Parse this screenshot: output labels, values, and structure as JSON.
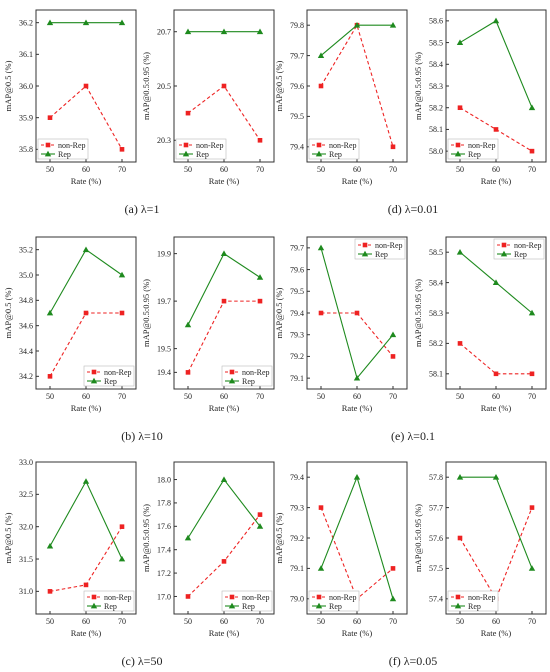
{
  "series_colors": {
    "non-Rep": "#ee2222",
    "Rep": "#1e8a1e"
  },
  "captions": [
    "(a) λ=1",
    "(b) λ=10",
    "(c) λ=50",
    "(d) λ=0.01",
    "(e) λ=0.1",
    "(f) λ=0.05"
  ],
  "chart_data": [
    {
      "id": "a-left",
      "type": "line",
      "x": [
        50,
        60,
        70
      ],
      "xlabel": "Rate (%)",
      "ylabel": "mAP@0.5 (%)",
      "yticks": [
        "35.8",
        "35.9",
        "36.0",
        "36.1",
        "36.2"
      ],
      "ylim": [
        35.76,
        36.24
      ],
      "legend": "bottom-left",
      "series": [
        {
          "name": "non-Rep",
          "values": [
            35.9,
            36.0,
            35.8
          ]
        },
        {
          "name": "Rep",
          "values": [
            36.2,
            36.2,
            36.2
          ]
        }
      ]
    },
    {
      "id": "a-right",
      "type": "line",
      "x": [
        50,
        60,
        70
      ],
      "xlabel": "Rate (%)",
      "ylabel": "mAP@0.5:0.95 (%)",
      "yticks": [
        "20.3",
        "20.5",
        "20.7"
      ],
      "ylim": [
        20.22,
        20.78
      ],
      "legend": "bottom-left",
      "series": [
        {
          "name": "non-Rep",
          "values": [
            20.4,
            20.5,
            20.3
          ]
        },
        {
          "name": "Rep",
          "values": [
            20.7,
            20.7,
            20.7
          ]
        }
      ]
    },
    {
      "id": "b-left",
      "type": "line",
      "x": [
        50,
        60,
        70
      ],
      "xlabel": "Rate (%)",
      "ylabel": "mAP@0.5 (%)",
      "yticks": [
        "34.2",
        "34.4",
        "34.6",
        "34.8",
        "35.0",
        "35.2"
      ],
      "ylim": [
        34.1,
        35.3
      ],
      "legend": "bottom-right",
      "series": [
        {
          "name": "non-Rep",
          "values": [
            34.2,
            34.7,
            34.7
          ]
        },
        {
          "name": "Rep",
          "values": [
            34.7,
            35.2,
            35.0
          ]
        }
      ]
    },
    {
      "id": "b-right",
      "type": "line",
      "x": [
        50,
        60,
        70
      ],
      "xlabel": "Rate (%)",
      "ylabel": "mAP@0.5:0.95 (%)",
      "yticks": [
        "19.4",
        "19.5",
        "19.7",
        "19.9"
      ],
      "ylim": [
        19.33,
        19.97
      ],
      "legend": "bottom-right",
      "series": [
        {
          "name": "non-Rep",
          "values": [
            19.4,
            19.7,
            19.7
          ]
        },
        {
          "name": "Rep",
          "values": [
            19.6,
            19.9,
            19.8
          ]
        }
      ]
    },
    {
      "id": "c-left",
      "type": "line",
      "x": [
        50,
        60,
        70
      ],
      "xlabel": "Rate (%)",
      "ylabel": "mAP@0.5 (%)",
      "yticks": [
        "31.0",
        "31.5",
        "32.0",
        "32.5",
        "33.0"
      ],
      "ylim": [
        30.65,
        33.0
      ],
      "legend": "bottom-right",
      "series": [
        {
          "name": "non-Rep",
          "values": [
            31.0,
            31.1,
            32.0
          ]
        },
        {
          "name": "Rep",
          "values": [
            31.7,
            32.7,
            31.5
          ]
        }
      ]
    },
    {
      "id": "c-right",
      "type": "line",
      "x": [
        50,
        60,
        70
      ],
      "xlabel": "Rate (%)",
      "ylabel": "mAP@0.5:0.95 (%)",
      "yticks": [
        "17.0",
        "17.2",
        "17.4",
        "17.6",
        "17.8",
        "18.0"
      ],
      "ylim": [
        16.85,
        18.15
      ],
      "legend": "bottom-right",
      "series": [
        {
          "name": "non-Rep",
          "values": [
            17.0,
            17.3,
            17.7
          ]
        },
        {
          "name": "Rep",
          "values": [
            17.5,
            18.0,
            17.6
          ]
        }
      ]
    },
    {
      "id": "d-left",
      "type": "line",
      "x": [
        50,
        60,
        70
      ],
      "xlabel": "Rate (%)",
      "ylabel": "mAP@0.5 (%)",
      "yticks": [
        "79.4",
        "79.5",
        "79.6",
        "79.7",
        "79.8"
      ],
      "ylim": [
        79.35,
        79.85
      ],
      "legend": "bottom-left",
      "series": [
        {
          "name": "non-Rep",
          "values": [
            79.6,
            79.8,
            79.4
          ]
        },
        {
          "name": "Rep",
          "values": [
            79.7,
            79.8,
            79.8
          ]
        }
      ]
    },
    {
      "id": "d-right",
      "type": "line",
      "x": [
        50,
        60,
        70
      ],
      "xlabel": "Rate (%)",
      "ylabel": "mAP@0.5:0.95 (%)",
      "yticks": [
        "58.0",
        "58.1",
        "58.2",
        "58.3",
        "58.4",
        "58.5",
        "58.6"
      ],
      "ylim": [
        57.95,
        58.65
      ],
      "legend": "bottom-left",
      "series": [
        {
          "name": "non-Rep",
          "values": [
            58.2,
            58.1,
            58.0
          ]
        },
        {
          "name": "Rep",
          "values": [
            58.5,
            58.6,
            58.2
          ]
        }
      ]
    },
    {
      "id": "e-left",
      "type": "line",
      "x": [
        50,
        60,
        70
      ],
      "xlabel": "Rate (%)",
      "ylabel": "mAP@0.5 (%)",
      "yticks": [
        "79.1",
        "79.2",
        "79.3",
        "79.4",
        "79.5",
        "79.6",
        "79.7"
      ],
      "ylim": [
        79.05,
        79.75
      ],
      "legend": "top-right",
      "series": [
        {
          "name": "non-Rep",
          "values": [
            79.4,
            79.4,
            79.2
          ]
        },
        {
          "name": "Rep",
          "values": [
            79.7,
            79.1,
            79.3
          ]
        }
      ]
    },
    {
      "id": "e-right",
      "type": "line",
      "x": [
        50,
        60,
        70
      ],
      "xlabel": "Rate (%)",
      "ylabel": "mAP@0.5:0.95 (%)",
      "yticks": [
        "58.1",
        "58.2",
        "58.3",
        "58.4",
        "58.5"
      ],
      "ylim": [
        58.05,
        58.55
      ],
      "legend": "top-right",
      "series": [
        {
          "name": "non-Rep",
          "values": [
            58.2,
            58.1,
            58.1
          ]
        },
        {
          "name": "Rep",
          "values": [
            58.5,
            58.4,
            58.3
          ]
        }
      ]
    },
    {
      "id": "f-left",
      "type": "line",
      "x": [
        50,
        60,
        70
      ],
      "xlabel": "Rate (%)",
      "ylabel": "mAP@0.5 (%)",
      "yticks": [
        "79.0",
        "79.1",
        "79.2",
        "79.3",
        "79.4"
      ],
      "ylim": [
        78.95,
        79.45
      ],
      "legend": "bottom-left",
      "series": [
        {
          "name": "non-Rep",
          "values": [
            79.3,
            79.0,
            79.1
          ]
        },
        {
          "name": "Rep",
          "values": [
            79.1,
            79.4,
            79.0
          ]
        }
      ]
    },
    {
      "id": "f-right",
      "type": "line",
      "x": [
        50,
        60,
        70
      ],
      "xlabel": "Rate (%)",
      "ylabel": "mAP@0.5:0.95 (%)",
      "yticks": [
        "57.4",
        "57.5",
        "57.6",
        "57.7",
        "57.8"
      ],
      "ylim": [
        57.35,
        57.85
      ],
      "legend": "bottom-left",
      "series": [
        {
          "name": "non-Rep",
          "values": [
            57.6,
            57.4,
            57.7
          ]
        },
        {
          "name": "Rep",
          "values": [
            57.8,
            57.8,
            57.5
          ]
        }
      ]
    }
  ]
}
